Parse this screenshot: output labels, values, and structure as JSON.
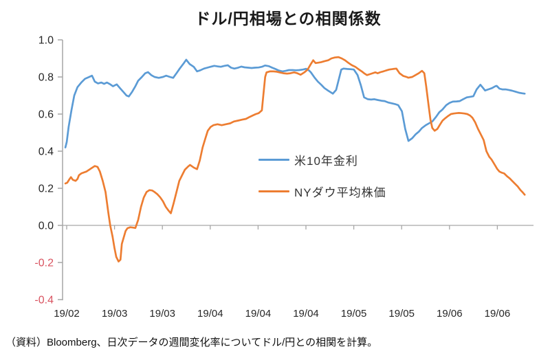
{
  "title": "ドル/円相場との相関係数",
  "footer": "（資料）Bloomberg、日次データの週間変化率についてドル/円との相関を計算。",
  "colors": {
    "us10y_line": "#5B9BD5",
    "nydow_line": "#ED7D31",
    "axis": "#A6A6A6",
    "tick_label": "#262626",
    "negative_tick_label": "#D95360"
  },
  "legend": [
    {
      "label": "米10年金利",
      "color": "#5B9BD5"
    },
    {
      "label": "NYダウ平均株価",
      "color": "#ED7D31"
    }
  ],
  "chart_data": {
    "type": "line",
    "title": "ドル/円相場との相関係数",
    "xlabel": "",
    "ylabel": "",
    "ylim": [
      -0.4,
      1.0
    ],
    "y_ticks": [
      1.0,
      0.8,
      0.6,
      0.4,
      0.2,
      0.0,
      -0.2,
      -0.4
    ],
    "x_tick_labels": [
      "19/02",
      "19/03",
      "19/03",
      "19/04",
      "19/04",
      "19/04",
      "19/05",
      "19/05",
      "19/06",
      "19/06"
    ],
    "grid": "horizontal zero line only",
    "legend_position": "inside center",
    "x_unit": "percent across plot width (19/02 left edge to 19/06 right edge)",
    "series": [
      {
        "name": "米10年金利",
        "color": "#5B9BD5",
        "points": [
          [
            0.6,
            0.42
          ],
          [
            0.9,
            0.45
          ],
          [
            1.3,
            0.53
          ],
          [
            1.9,
            0.62
          ],
          [
            2.5,
            0.7
          ],
          [
            3.2,
            0.745
          ],
          [
            4.0,
            0.77
          ],
          [
            4.8,
            0.79
          ],
          [
            5.7,
            0.8
          ],
          [
            6.3,
            0.807
          ],
          [
            6.9,
            0.775
          ],
          [
            7.6,
            0.765
          ],
          [
            8.3,
            0.77
          ],
          [
            8.9,
            0.763
          ],
          [
            9.5,
            0.77
          ],
          [
            10.1,
            0.762
          ],
          [
            10.8,
            0.75
          ],
          [
            11.6,
            0.76
          ],
          [
            12.3,
            0.74
          ],
          [
            13.0,
            0.72
          ],
          [
            13.7,
            0.7
          ],
          [
            14.2,
            0.695
          ],
          [
            14.9,
            0.72
          ],
          [
            15.6,
            0.75
          ],
          [
            16.2,
            0.78
          ],
          [
            17.0,
            0.8
          ],
          [
            17.7,
            0.82
          ],
          [
            18.3,
            0.826
          ],
          [
            19.0,
            0.81
          ],
          [
            19.7,
            0.8
          ],
          [
            20.6,
            0.795
          ],
          [
            21.5,
            0.8
          ],
          [
            22.2,
            0.807
          ],
          [
            23.0,
            0.8
          ],
          [
            23.7,
            0.795
          ],
          [
            24.4,
            0.82
          ],
          [
            25.1,
            0.845
          ],
          [
            25.9,
            0.872
          ],
          [
            26.5,
            0.893
          ],
          [
            27.2,
            0.87
          ],
          [
            28.1,
            0.855
          ],
          [
            28.8,
            0.83
          ],
          [
            29.5,
            0.836
          ],
          [
            30.3,
            0.845
          ],
          [
            31.0,
            0.85
          ],
          [
            31.7,
            0.855
          ],
          [
            32.5,
            0.86
          ],
          [
            33.2,
            0.857
          ],
          [
            33.9,
            0.855
          ],
          [
            34.7,
            0.86
          ],
          [
            35.4,
            0.863
          ],
          [
            36.1,
            0.85
          ],
          [
            36.8,
            0.845
          ],
          [
            37.6,
            0.85
          ],
          [
            38.3,
            0.856
          ],
          [
            39.0,
            0.852
          ],
          [
            39.8,
            0.85
          ],
          [
            40.5,
            0.848
          ],
          [
            41.2,
            0.85
          ],
          [
            42.0,
            0.851
          ],
          [
            42.7,
            0.855
          ],
          [
            43.4,
            0.862
          ],
          [
            44.2,
            0.858
          ],
          [
            44.9,
            0.85
          ],
          [
            45.6,
            0.843
          ],
          [
            46.3,
            0.835
          ],
          [
            47.1,
            0.83
          ],
          [
            47.8,
            0.833
          ],
          [
            48.5,
            0.837
          ],
          [
            49.3,
            0.837
          ],
          [
            50.0,
            0.836
          ],
          [
            50.7,
            0.837
          ],
          [
            51.5,
            0.84
          ],
          [
            52.2,
            0.844
          ],
          [
            52.8,
            0.835
          ],
          [
            53.2,
            0.825
          ],
          [
            54.0,
            0.796
          ],
          [
            54.7,
            0.775
          ],
          [
            55.4,
            0.758
          ],
          [
            56.1,
            0.74
          ],
          [
            56.9,
            0.726
          ],
          [
            57.9,
            0.71
          ],
          [
            58.6,
            0.73
          ],
          [
            59.1,
            0.78
          ],
          [
            59.7,
            0.84
          ],
          [
            60.2,
            0.845
          ],
          [
            61.0,
            0.843
          ],
          [
            61.7,
            0.842
          ],
          [
            62.4,
            0.84
          ],
          [
            63.2,
            0.81
          ],
          [
            63.9,
            0.755
          ],
          [
            64.6,
            0.69
          ],
          [
            65.4,
            0.68
          ],
          [
            66.1,
            0.678
          ],
          [
            66.8,
            0.68
          ],
          [
            67.5,
            0.676
          ],
          [
            68.3,
            0.672
          ],
          [
            69.0,
            0.67
          ],
          [
            69.7,
            0.663
          ],
          [
            70.5,
            0.658
          ],
          [
            71.2,
            0.654
          ],
          [
            71.9,
            0.648
          ],
          [
            72.7,
            0.615
          ],
          [
            73.4,
            0.52
          ],
          [
            74.1,
            0.455
          ],
          [
            74.9,
            0.47
          ],
          [
            75.6,
            0.49
          ],
          [
            76.3,
            0.505
          ],
          [
            77.0,
            0.525
          ],
          [
            77.8,
            0.54
          ],
          [
            78.5,
            0.55
          ],
          [
            79.2,
            0.56
          ],
          [
            80.0,
            0.585
          ],
          [
            80.7,
            0.61
          ],
          [
            81.4,
            0.625
          ],
          [
            82.2,
            0.648
          ],
          [
            82.9,
            0.66
          ],
          [
            83.6,
            0.667
          ],
          [
            84.4,
            0.668
          ],
          [
            85.1,
            0.67
          ],
          [
            85.8,
            0.68
          ],
          [
            86.6,
            0.69
          ],
          [
            87.3,
            0.693
          ],
          [
            88.0,
            0.696
          ],
          [
            88.7,
            0.733
          ],
          [
            89.5,
            0.758
          ],
          [
            90.1,
            0.74
          ],
          [
            90.5,
            0.727
          ],
          [
            91.2,
            0.733
          ],
          [
            92.0,
            0.74
          ],
          [
            92.7,
            0.75
          ],
          [
            93.0,
            0.752
          ],
          [
            93.6,
            0.737
          ],
          [
            94.2,
            0.733
          ],
          [
            94.9,
            0.733
          ],
          [
            95.6,
            0.73
          ],
          [
            96.3,
            0.726
          ],
          [
            97.1,
            0.72
          ],
          [
            97.8,
            0.715
          ],
          [
            98.5,
            0.712
          ],
          [
            99.0,
            0.71
          ]
        ]
      },
      {
        "name": "NYダウ平均株価",
        "color": "#ED7D31",
        "points": [
          [
            0.6,
            0.226
          ],
          [
            1.0,
            0.23
          ],
          [
            1.5,
            0.25
          ],
          [
            1.8,
            0.26
          ],
          [
            2.2,
            0.246
          ],
          [
            2.8,
            0.24
          ],
          [
            3.2,
            0.25
          ],
          [
            3.5,
            0.27
          ],
          [
            4.0,
            0.28
          ],
          [
            4.5,
            0.285
          ],
          [
            5.1,
            0.29
          ],
          [
            5.7,
            0.3
          ],
          [
            6.3,
            0.31
          ],
          [
            6.9,
            0.32
          ],
          [
            7.5,
            0.315
          ],
          [
            8.0,
            0.29
          ],
          [
            8.6,
            0.24
          ],
          [
            9.2,
            0.18
          ],
          [
            9.8,
            0.07
          ],
          [
            10.2,
            0.0
          ],
          [
            10.7,
            -0.06
          ],
          [
            11.1,
            -0.12
          ],
          [
            11.5,
            -0.17
          ],
          [
            12.0,
            -0.195
          ],
          [
            12.4,
            -0.185
          ],
          [
            12.7,
            -0.1
          ],
          [
            13.5,
            -0.03
          ],
          [
            13.9,
            -0.015
          ],
          [
            14.5,
            -0.01
          ],
          [
            15.1,
            -0.012
          ],
          [
            15.6,
            -0.014
          ],
          [
            16.2,
            0.03
          ],
          [
            16.8,
            0.1
          ],
          [
            17.4,
            0.15
          ],
          [
            18.0,
            0.18
          ],
          [
            18.6,
            0.19
          ],
          [
            19.2,
            0.188
          ],
          [
            19.7,
            0.18
          ],
          [
            20.3,
            0.168
          ],
          [
            20.9,
            0.152
          ],
          [
            21.5,
            0.13
          ],
          [
            22.1,
            0.1
          ],
          [
            22.7,
            0.08
          ],
          [
            23.2,
            0.065
          ],
          [
            23.8,
            0.12
          ],
          [
            24.4,
            0.18
          ],
          [
            25.0,
            0.24
          ],
          [
            25.6,
            0.27
          ],
          [
            26.2,
            0.3
          ],
          [
            26.8,
            0.315
          ],
          [
            27.3,
            0.326
          ],
          [
            28.1,
            0.312
          ],
          [
            28.8,
            0.303
          ],
          [
            29.4,
            0.35
          ],
          [
            30.0,
            0.42
          ],
          [
            30.6,
            0.47
          ],
          [
            31.1,
            0.51
          ],
          [
            31.7,
            0.53
          ],
          [
            32.3,
            0.54
          ],
          [
            33.2,
            0.545
          ],
          [
            34.1,
            0.54
          ],
          [
            35.0,
            0.545
          ],
          [
            35.9,
            0.55
          ],
          [
            36.7,
            0.56
          ],
          [
            37.6,
            0.565
          ],
          [
            38.5,
            0.57
          ],
          [
            39.3,
            0.574
          ],
          [
            40.1,
            0.585
          ],
          [
            40.8,
            0.593
          ],
          [
            41.4,
            0.6
          ],
          [
            42.0,
            0.605
          ],
          [
            42.7,
            0.62
          ],
          [
            43.0,
            0.7
          ],
          [
            43.4,
            0.8
          ],
          [
            43.7,
            0.825
          ],
          [
            44.4,
            0.83
          ],
          [
            45.2,
            0.83
          ],
          [
            45.9,
            0.828
          ],
          [
            46.6,
            0.824
          ],
          [
            47.3,
            0.82
          ],
          [
            48.1,
            0.818
          ],
          [
            48.8,
            0.82
          ],
          [
            49.6,
            0.825
          ],
          [
            50.3,
            0.82
          ],
          [
            51.0,
            0.812
          ],
          [
            51.8,
            0.825
          ],
          [
            52.5,
            0.84
          ],
          [
            53.2,
            0.87
          ],
          [
            53.7,
            0.89
          ],
          [
            54.2,
            0.875
          ],
          [
            54.8,
            0.877
          ],
          [
            55.4,
            0.88
          ],
          [
            56.1,
            0.885
          ],
          [
            56.9,
            0.89
          ],
          [
            57.6,
            0.9
          ],
          [
            58.3,
            0.905
          ],
          [
            59.1,
            0.907
          ],
          [
            59.8,
            0.9
          ],
          [
            60.5,
            0.89
          ],
          [
            61.3,
            0.875
          ],
          [
            62.0,
            0.863
          ],
          [
            62.7,
            0.855
          ],
          [
            63.5,
            0.84
          ],
          [
            64.2,
            0.828
          ],
          [
            64.6,
            0.82
          ],
          [
            65.2,
            0.81
          ],
          [
            65.8,
            0.815
          ],
          [
            66.4,
            0.82
          ],
          [
            67.0,
            0.825
          ],
          [
            67.5,
            0.82
          ],
          [
            68.1,
            0.826
          ],
          [
            68.7,
            0.83
          ],
          [
            69.3,
            0.835
          ],
          [
            70.0,
            0.84
          ],
          [
            70.8,
            0.843
          ],
          [
            71.5,
            0.845
          ],
          [
            72.2,
            0.82
          ],
          [
            73.0,
            0.805
          ],
          [
            73.7,
            0.8
          ],
          [
            74.1,
            0.796
          ],
          [
            74.9,
            0.8
          ],
          [
            75.6,
            0.81
          ],
          [
            76.3,
            0.82
          ],
          [
            77.0,
            0.833
          ],
          [
            77.5,
            0.82
          ],
          [
            77.9,
            0.75
          ],
          [
            78.4,
            0.65
          ],
          [
            78.8,
            0.57
          ],
          [
            79.2,
            0.525
          ],
          [
            79.7,
            0.51
          ],
          [
            80.3,
            0.52
          ],
          [
            80.9,
            0.545
          ],
          [
            81.4,
            0.565
          ],
          [
            82.0,
            0.578
          ],
          [
            82.6,
            0.59
          ],
          [
            83.2,
            0.6
          ],
          [
            83.8,
            0.603
          ],
          [
            84.4,
            0.605
          ],
          [
            84.9,
            0.606
          ],
          [
            85.5,
            0.605
          ],
          [
            86.1,
            0.603
          ],
          [
            86.7,
            0.6
          ],
          [
            87.3,
            0.592
          ],
          [
            87.8,
            0.58
          ],
          [
            88.4,
            0.555
          ],
          [
            89.0,
            0.52
          ],
          [
            89.6,
            0.49
          ],
          [
            90.2,
            0.46
          ],
          [
            90.8,
            0.4
          ],
          [
            91.4,
            0.37
          ],
          [
            91.9,
            0.355
          ],
          [
            92.5,
            0.33
          ],
          [
            93.1,
            0.305
          ],
          [
            93.6,
            0.29
          ],
          [
            94.0,
            0.285
          ],
          [
            94.6,
            0.28
          ],
          [
            95.2,
            0.265
          ],
          [
            95.8,
            0.253
          ],
          [
            96.3,
            0.24
          ],
          [
            96.9,
            0.225
          ],
          [
            97.5,
            0.21
          ],
          [
            98.1,
            0.19
          ],
          [
            98.5,
            0.18
          ],
          [
            99.0,
            0.165
          ]
        ]
      }
    ]
  }
}
